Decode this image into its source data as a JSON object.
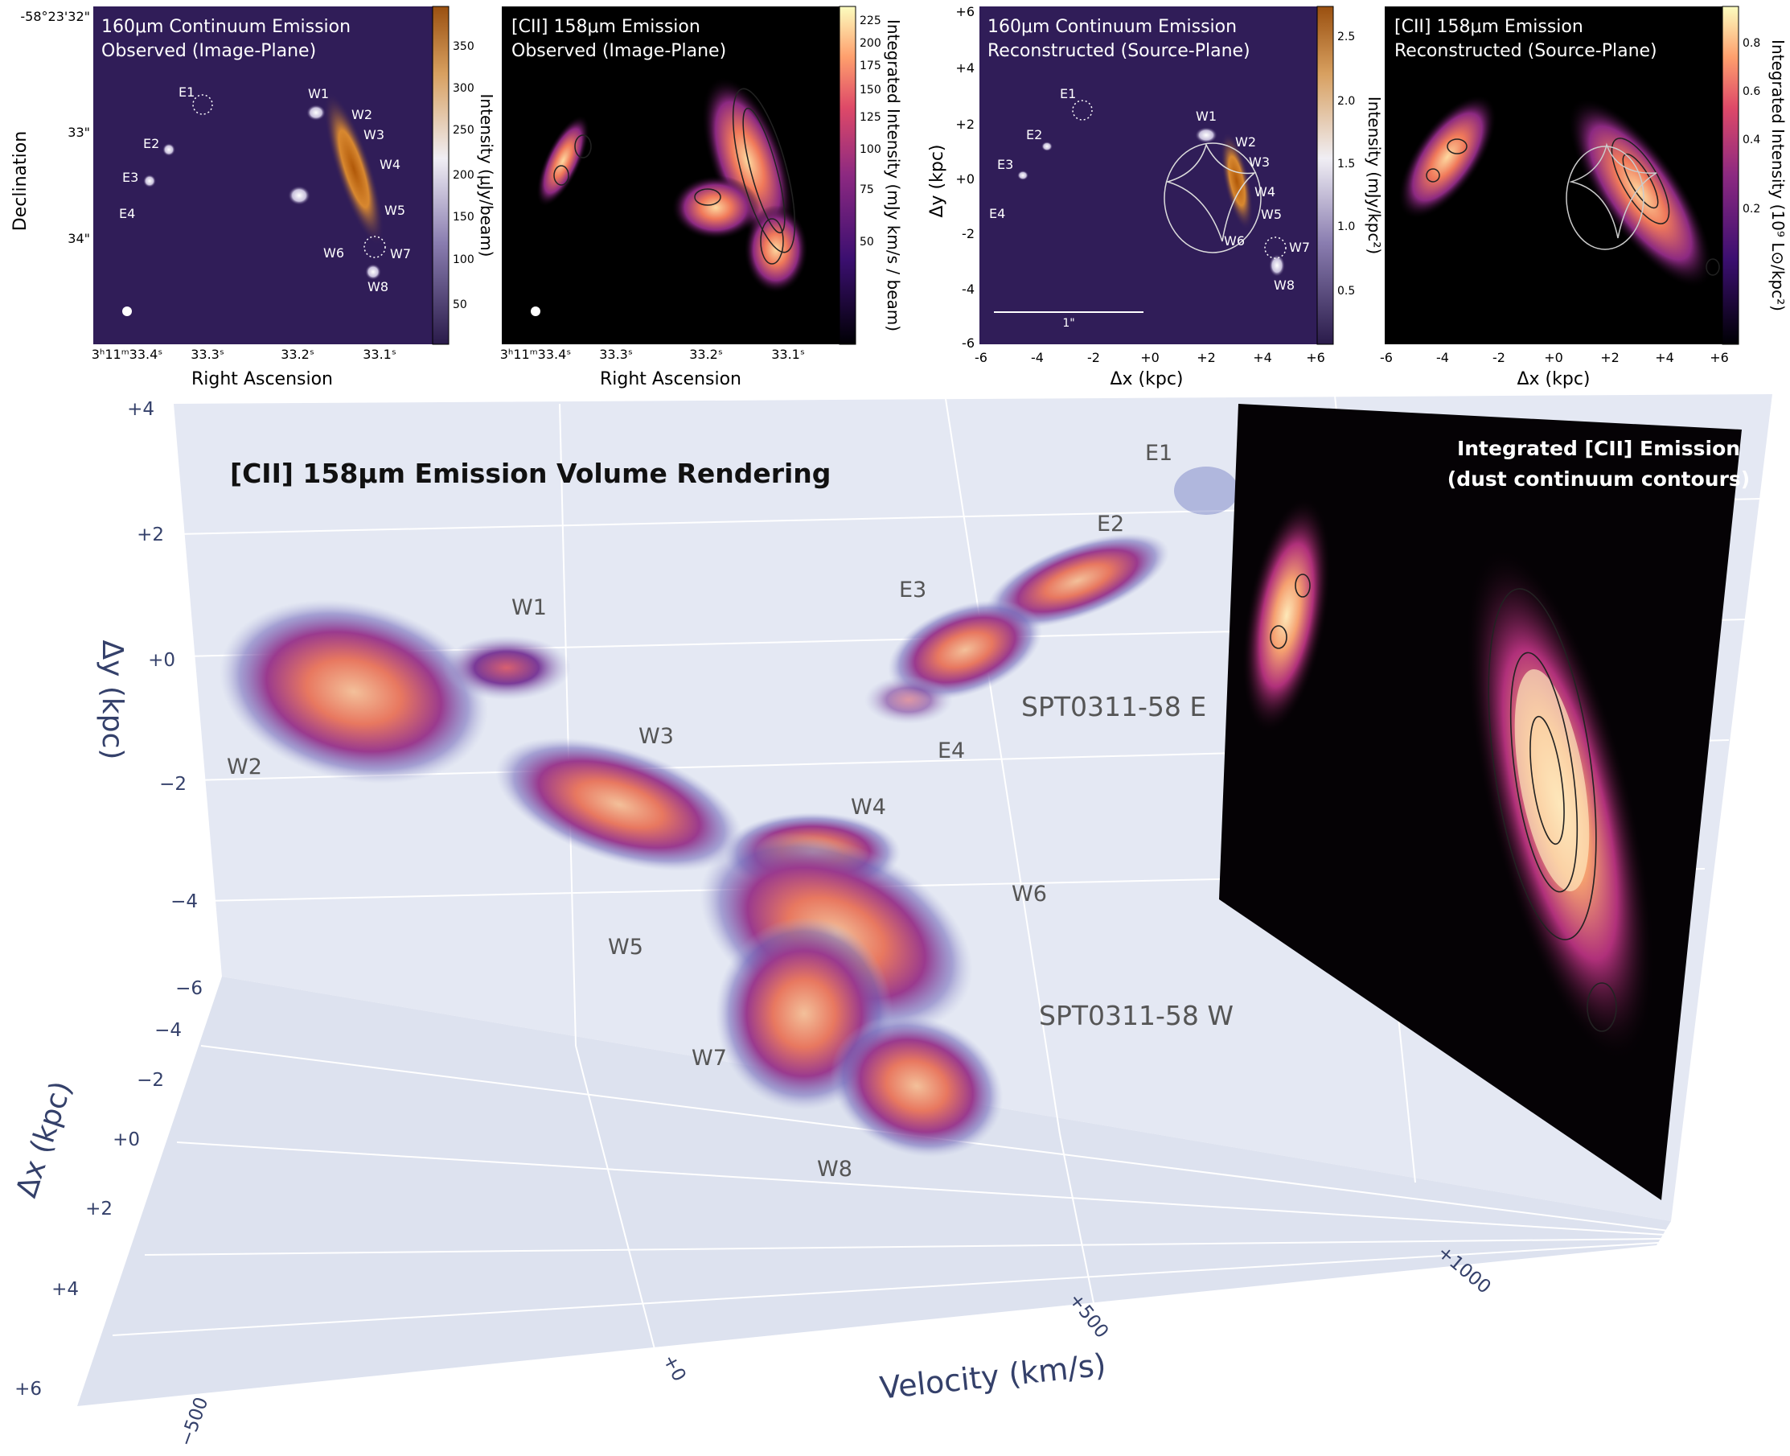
{
  "panels": [
    {
      "title_line1": "160μm Continuum Emission",
      "title_line2": "Observed (Image-Plane)",
      "cbar_label": "Intensity (μJy/beam)",
      "cbar_ticks": [
        "350",
        "300",
        "250",
        "200",
        "150",
        "100",
        "50"
      ],
      "x_ticks": [
        "3ʰ11ᵐ33.4ˢ",
        "33.3ˢ",
        "33.2ˢ",
        "33.1ˢ"
      ],
      "x_label": "Right Ascension",
      "y_ticks": [
        "-58°23'32\"",
        "33\"",
        "34\""
      ],
      "y_label": "Declination",
      "labels": [
        "E1",
        "E2",
        "E3",
        "E4",
        "W1",
        "W2",
        "W3",
        "W4",
        "W5",
        "W6",
        "W7",
        "W8"
      ]
    },
    {
      "title_line1": "[CII] 158μm Emission",
      "title_line2": "Observed (Image-Plane)",
      "cbar_label": "Integrated Intensity (mJy km/s / beam)",
      "cbar_ticks": [
        "225",
        "200",
        "175",
        "150",
        "125",
        "100",
        "75",
        "50"
      ],
      "x_ticks": [
        "3ʰ11ᵐ33.4ˢ",
        "33.3ˢ",
        "33.2ˢ",
        "33.1ˢ"
      ],
      "x_label": "Right Ascension"
    },
    {
      "title_line1": "160μm Continuum Emission",
      "title_line2": "Reconstructed (Source-Plane)",
      "cbar_label": "Intensity (mJy/kpc²)",
      "cbar_ticks": [
        "2.5",
        "2.0",
        "1.5",
        "1.0",
        "0.5"
      ],
      "x_ticks": [
        "-6",
        "-4",
        "-2",
        "+0",
        "+2",
        "+4",
        "+6"
      ],
      "x_label": "Δx (kpc)",
      "y_ticks": [
        "+6",
        "+4",
        "+2",
        "+0",
        "-2",
        "-4",
        "-6"
      ],
      "y_label": "Δy (kpc)",
      "scale_bar": "1\"",
      "labels": [
        "E1",
        "E2",
        "E3",
        "E4",
        "W1",
        "W2",
        "W3",
        "W4",
        "W5",
        "W6",
        "W7",
        "W8"
      ]
    },
    {
      "title_line1": "[CII] 158μm Emission",
      "title_line2": "Reconstructed (Source-Plane)",
      "cbar_label": "Integrated Intensity (10⁹ L⊙/kpc²)",
      "cbar_ticks": [
        "0.8",
        "0.6",
        "0.4",
        "0.2"
      ],
      "x_ticks": [
        "-6",
        "-4",
        "-2",
        "+0",
        "+2",
        "+4",
        "+6"
      ],
      "x_label": "Δx (kpc)"
    }
  ],
  "volume": {
    "title": "[CII] 158μm Emission Volume Rendering",
    "inset_title_line1": "Integrated [CII] Emission",
    "inset_title_line2": "(dust continuum contours)",
    "dy_label": "Δy (kpc)",
    "dy_ticks": [
      "+4",
      "+2",
      "+0",
      "−2",
      "−4",
      "−6"
    ],
    "dx_label": "Δx (kpc)",
    "dx_ticks": [
      "−4",
      "−2",
      "+0",
      "+2",
      "+4",
      "+6"
    ],
    "v_label": "Velocity (km/s)",
    "v_ticks": [
      "−500",
      "+0",
      "+500",
      "+1000"
    ],
    "source_e": "SPT0311-58 E",
    "source_w": "SPT0311-58 W",
    "labels": [
      "E1",
      "E2",
      "E3",
      "E4",
      "W1",
      "W2",
      "W3",
      "W4",
      "W5",
      "W6",
      "W7",
      "W8"
    ]
  }
}
